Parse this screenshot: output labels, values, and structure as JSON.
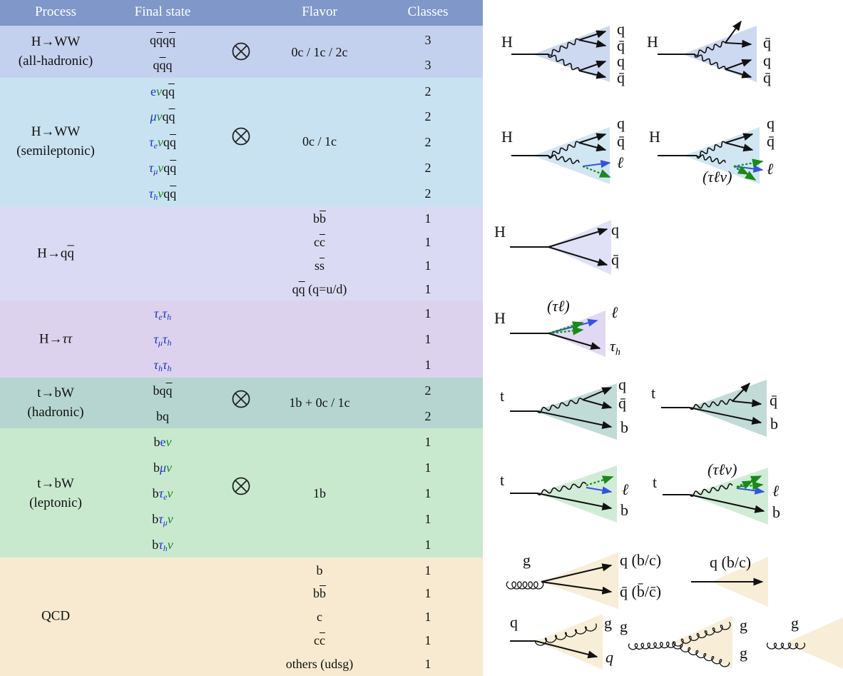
{
  "header": {
    "process": "Process",
    "final_state": "Final state",
    "flavor": "Flavor",
    "classes": "Classes"
  },
  "rows": [
    {
      "process_lines": [
        "H→WW",
        "(all-hadronic)"
      ],
      "flavor": [
        "0c / 1c / 2c"
      ],
      "final_states": [
        "qq̄qq̄",
        "qq̄q"
      ],
      "classes": [
        "3",
        "3"
      ]
    },
    {
      "process_lines": [
        "H→WW",
        "(semileptonic)"
      ],
      "flavor": [
        "0c / 1c"
      ],
      "final_states": [
        "eνqq̄",
        "μνqq̄",
        "τeνqq̄",
        "τμνqq̄",
        "τhνqq̄"
      ],
      "classes": [
        "2",
        "2",
        "2",
        "2",
        "2"
      ]
    },
    {
      "process_lines": [
        "H→qq̄"
      ],
      "flavor": [
        "bb̄",
        "cc̄",
        "ss̄",
        "qq̄ (q=u/d)"
      ],
      "final_states": [],
      "classes": [
        "1",
        "1",
        "1",
        "1"
      ]
    },
    {
      "process_lines": [
        "H→ττ"
      ],
      "flavor": [],
      "final_states": [
        "τeτh",
        "τμτh",
        "τhτh"
      ],
      "classes": [
        "1",
        "1",
        "1"
      ]
    },
    {
      "process_lines": [
        "t→bW",
        "(hadronic)"
      ],
      "flavor": [
        "1b + 0c / 1c"
      ],
      "final_states": [
        "bqq̄",
        "bq"
      ],
      "classes": [
        "2",
        "2"
      ]
    },
    {
      "process_lines": [
        "t→bW",
        "(leptonic)"
      ],
      "flavor": [
        "1b"
      ],
      "final_states": [
        "beν",
        "bμν",
        "bτeν",
        "bτμν",
        "bτhν"
      ],
      "classes": [
        "1",
        "1",
        "1",
        "1",
        "1"
      ]
    },
    {
      "process_lines": [
        "QCD"
      ],
      "flavor": [
        "b",
        "bb̄",
        "c",
        "cc̄",
        "others (udsg)"
      ],
      "final_states": [],
      "classes": [
        "1",
        "1",
        "1",
        "1",
        "1"
      ]
    }
  ],
  "diagram_labels": {
    "H": "H",
    "t": "t",
    "g": "g",
    "q": "q",
    "q_bar": "q̄",
    "b": "b",
    "lepton": "ℓ",
    "tau_h": "τ",
    "tau_h_sub": "h",
    "tau_lep_nu": "(τℓν)",
    "tau_lep": "(τℓ)",
    "q_bc": "q (b/c)",
    "qbar_bc": "q̄ (b̄/c̄)"
  },
  "colors": {
    "header": "#7f97c9",
    "hww_had": "#c4d1ee",
    "hww_semi": "#c9e2f1",
    "hqq": "#dbdaf4",
    "htautau": "#dcd2ee",
    "tbw_had": "#b6d5d0",
    "tbw_lep": "#c9e9cf",
    "qcd": "#f7ead0",
    "lepton_arrow": "#3355dd",
    "neutrino_arrow": "#1a8a1a"
  },
  "icons": {
    "tensor_product": "circled-times-icon"
  }
}
